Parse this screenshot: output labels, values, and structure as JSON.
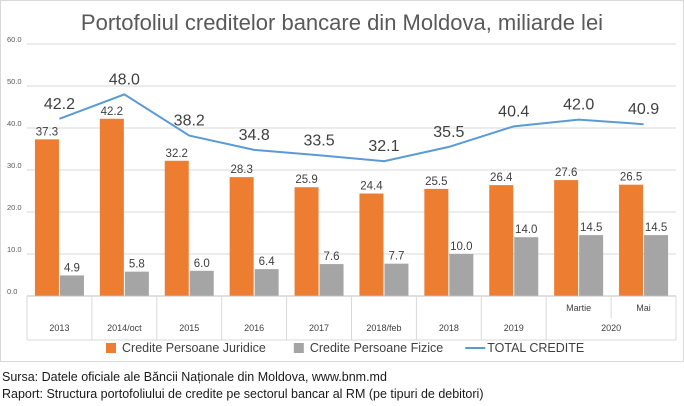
{
  "chart_data": {
    "type": "bar",
    "title": "Portofoliul creditelor bancare din Moldova, miliarde lei",
    "categories": [
      "2013",
      "2014/oct",
      "2015",
      "2016",
      "2017",
      "2018/feb",
      "2018",
      "2019",
      "Martie",
      "Mai"
    ],
    "category_group": {
      "label": "2020",
      "members": [
        "Martie",
        "Mai"
      ]
    },
    "ylim": [
      0,
      60
    ],
    "yticks": [
      "0.0",
      "10.0",
      "20.0",
      "30.0",
      "40.0",
      "50.0",
      "60.0"
    ],
    "grid": true,
    "legend_position": "bottom",
    "series": [
      {
        "name": "Credite Persoane Juridice",
        "kind": "bar",
        "color": "#ed7d31",
        "values": [
          37.3,
          42.2,
          32.2,
          28.3,
          25.9,
          24.4,
          25.5,
          26.4,
          27.6,
          26.5
        ],
        "labels": [
          "37.3",
          "42.2",
          "32.2",
          "28.3",
          "25.9",
          "24.4",
          "25.5",
          "26.4",
          "27.6",
          "26.5"
        ]
      },
      {
        "name": "Credite Persoane Fizice",
        "kind": "bar",
        "color": "#a5a5a5",
        "values": [
          4.9,
          5.8,
          6.0,
          6.4,
          7.6,
          7.7,
          10.0,
          14.0,
          14.5,
          14.5
        ],
        "labels": [
          "4.9",
          "5.8",
          "6.0",
          "6.4",
          "7.6",
          "7.7",
          "10.0",
          "14.0",
          "14.5",
          "14.5"
        ]
      },
      {
        "name": "TOTAL CREDITE",
        "kind": "line",
        "color": "#5b9bd5",
        "values": [
          42.2,
          48.0,
          38.2,
          34.8,
          33.5,
          32.1,
          35.5,
          40.4,
          42.0,
          40.9
        ],
        "labels": [
          "42.2",
          "48.0",
          "38.2",
          "34.8",
          "33.5",
          "32.1",
          "35.5",
          "40.4",
          "42.0",
          "40.9"
        ]
      }
    ]
  },
  "footer": {
    "source": "Sursa: Datele oficiale ale Băncii Naționale din Moldova, www.bnm.md",
    "report": "Raport: Structura portofoliului de credite pe sectorul bancar al RM (pe tipuri de debitori)"
  }
}
